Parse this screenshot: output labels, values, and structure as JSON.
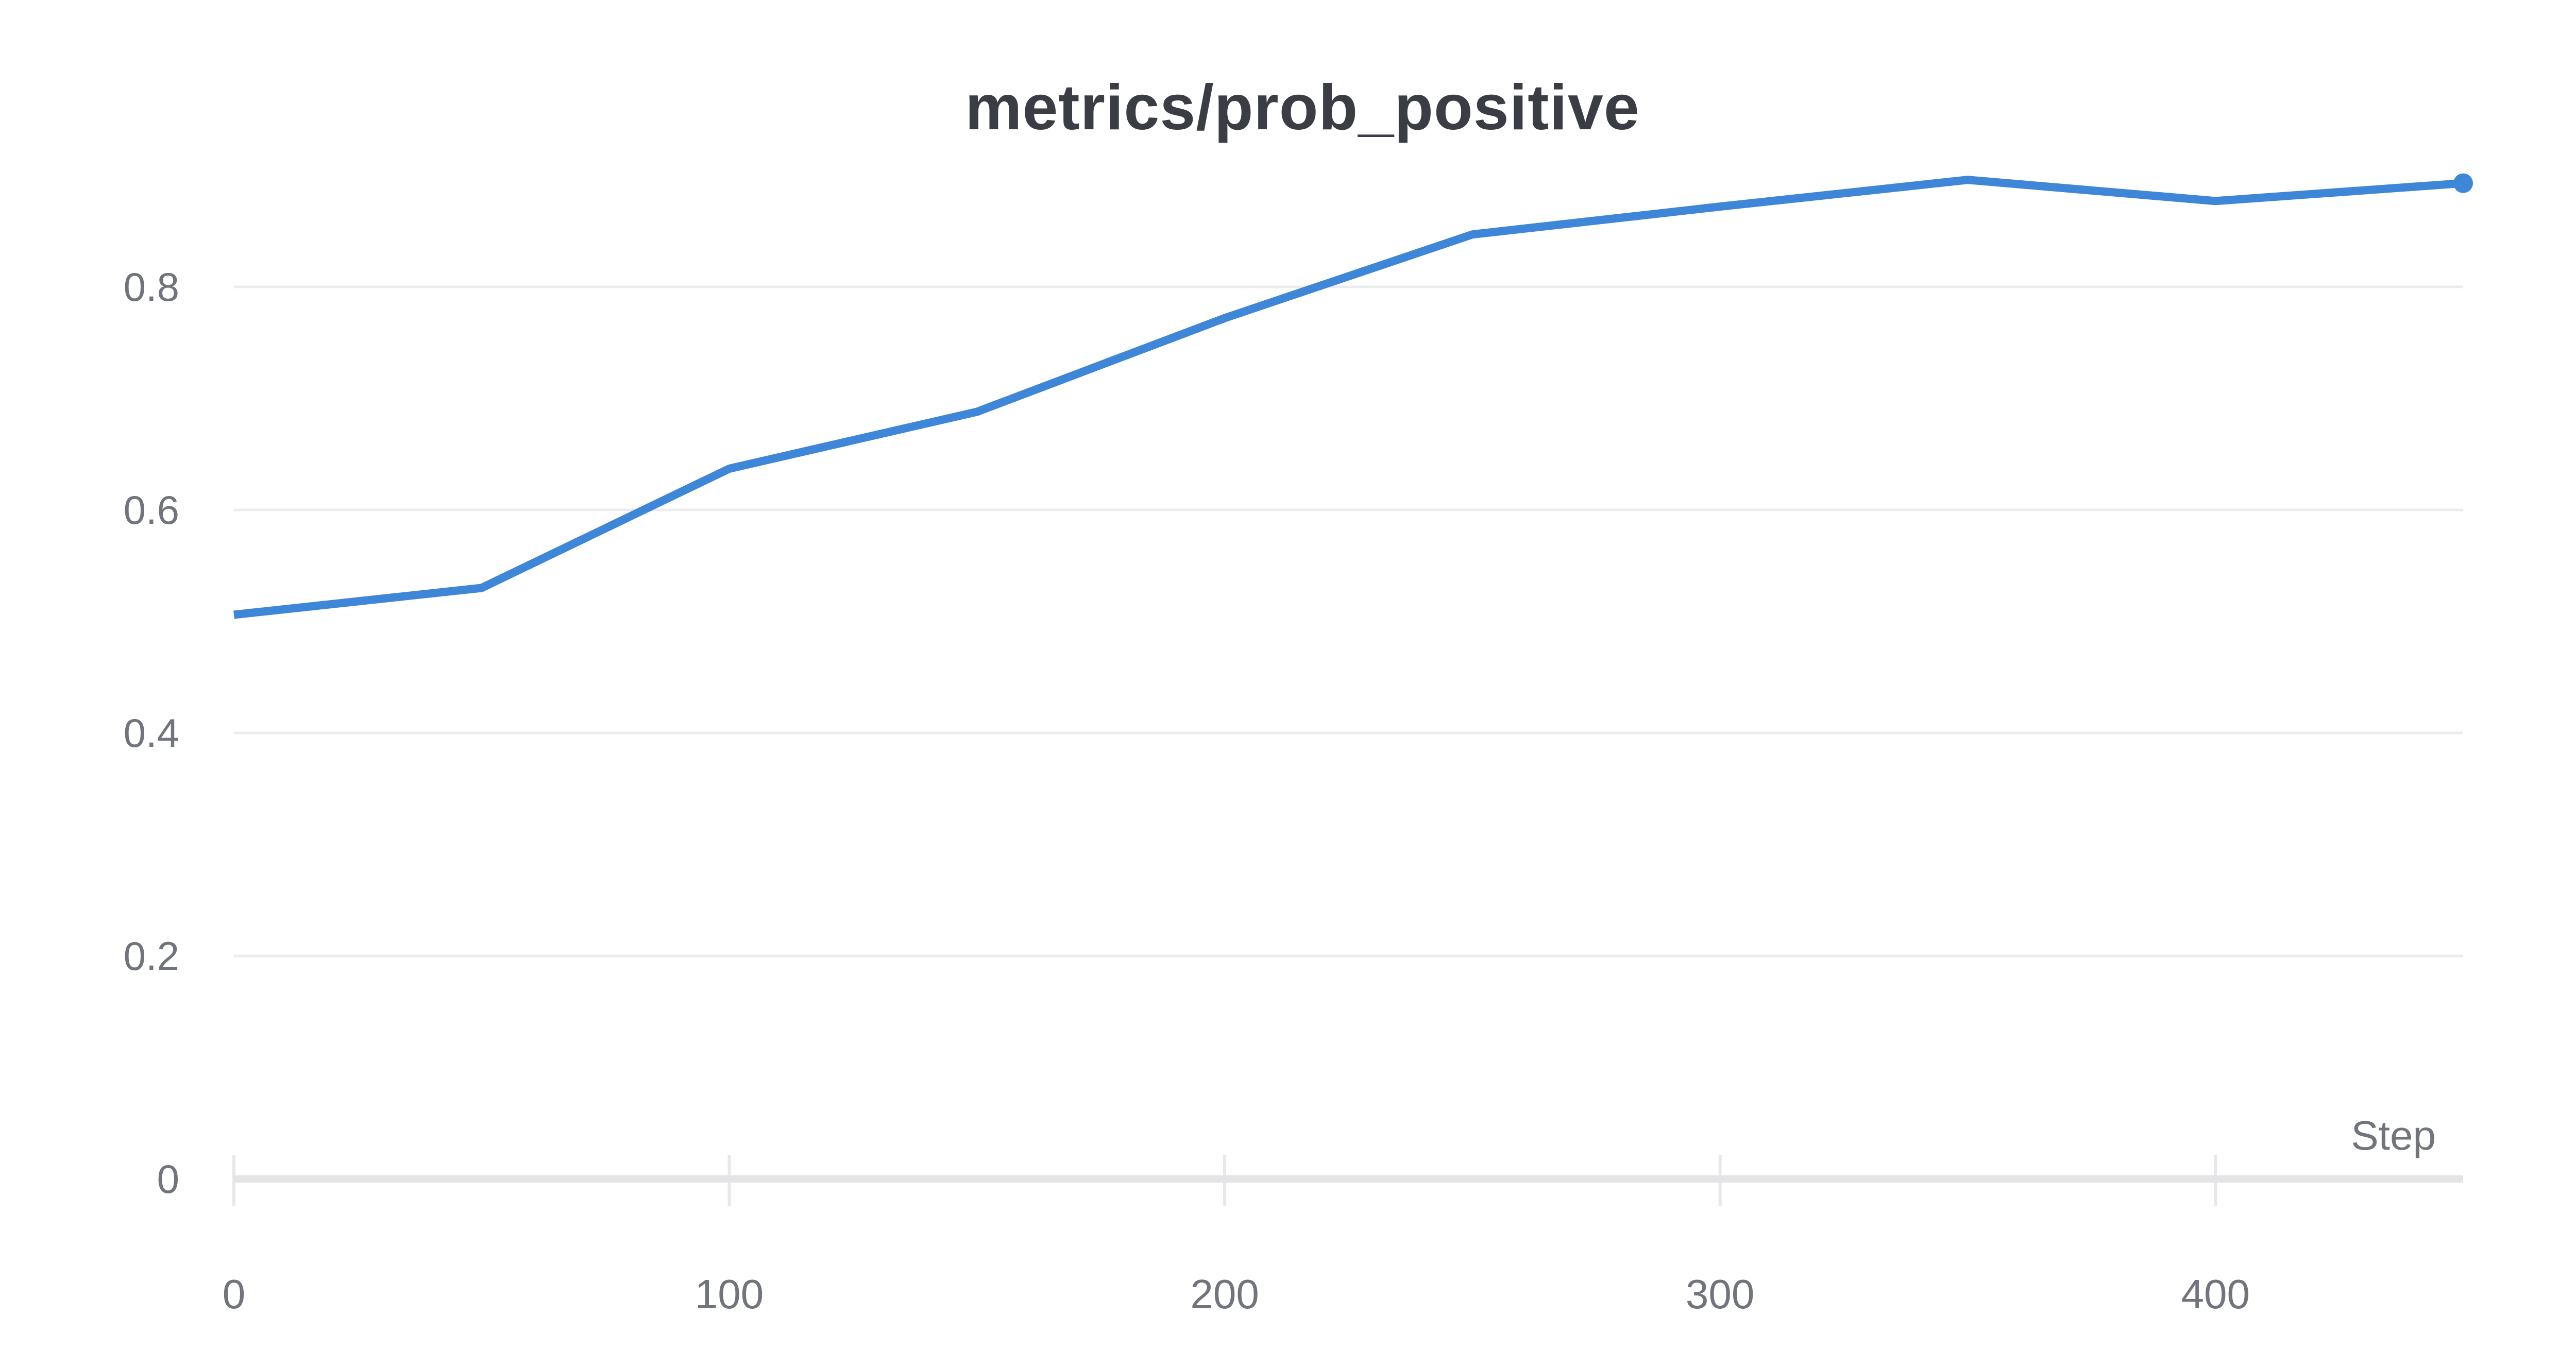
{
  "panel": {
    "background": "#ffffff"
  },
  "chart_data": {
    "type": "line",
    "title": "metrics/prob_positive",
    "xlabel": "Step",
    "ylabel": "",
    "x": [
      0,
      50,
      100,
      150,
      200,
      250,
      300,
      350,
      400,
      450
    ],
    "series": [
      {
        "name": "metrics/prob_positive",
        "values": [
          0.506,
          0.53,
          0.637,
          0.688,
          0.772,
          0.847,
          0.872,
          0.896,
          0.877,
          0.893
        ]
      }
    ],
    "x_tick_values": [
      0,
      100,
      200,
      300,
      400
    ],
    "x_tick_labels": [
      "0",
      "100",
      "200",
      "300",
      "400"
    ],
    "y_tick_values": [
      0,
      0.2,
      0.4,
      0.6,
      0.8
    ],
    "y_tick_labels": [
      "0",
      "0.2",
      "0.4",
      "0.6",
      "0.8"
    ],
    "xlim": [
      0,
      450
    ],
    "ylim": [
      0,
      0.95
    ],
    "grid": "horizontal",
    "legend": "none",
    "end_marker": true,
    "colors": {
      "line": "#3e86d8",
      "marker": "#3e86d8",
      "title": "#3a3d44",
      "tick_label": "#71737d",
      "axis_label": "#71737d",
      "gridline": "#ececee",
      "axis_line": "#e4e4e6",
      "tick_mark": "#e8e8ea"
    }
  }
}
